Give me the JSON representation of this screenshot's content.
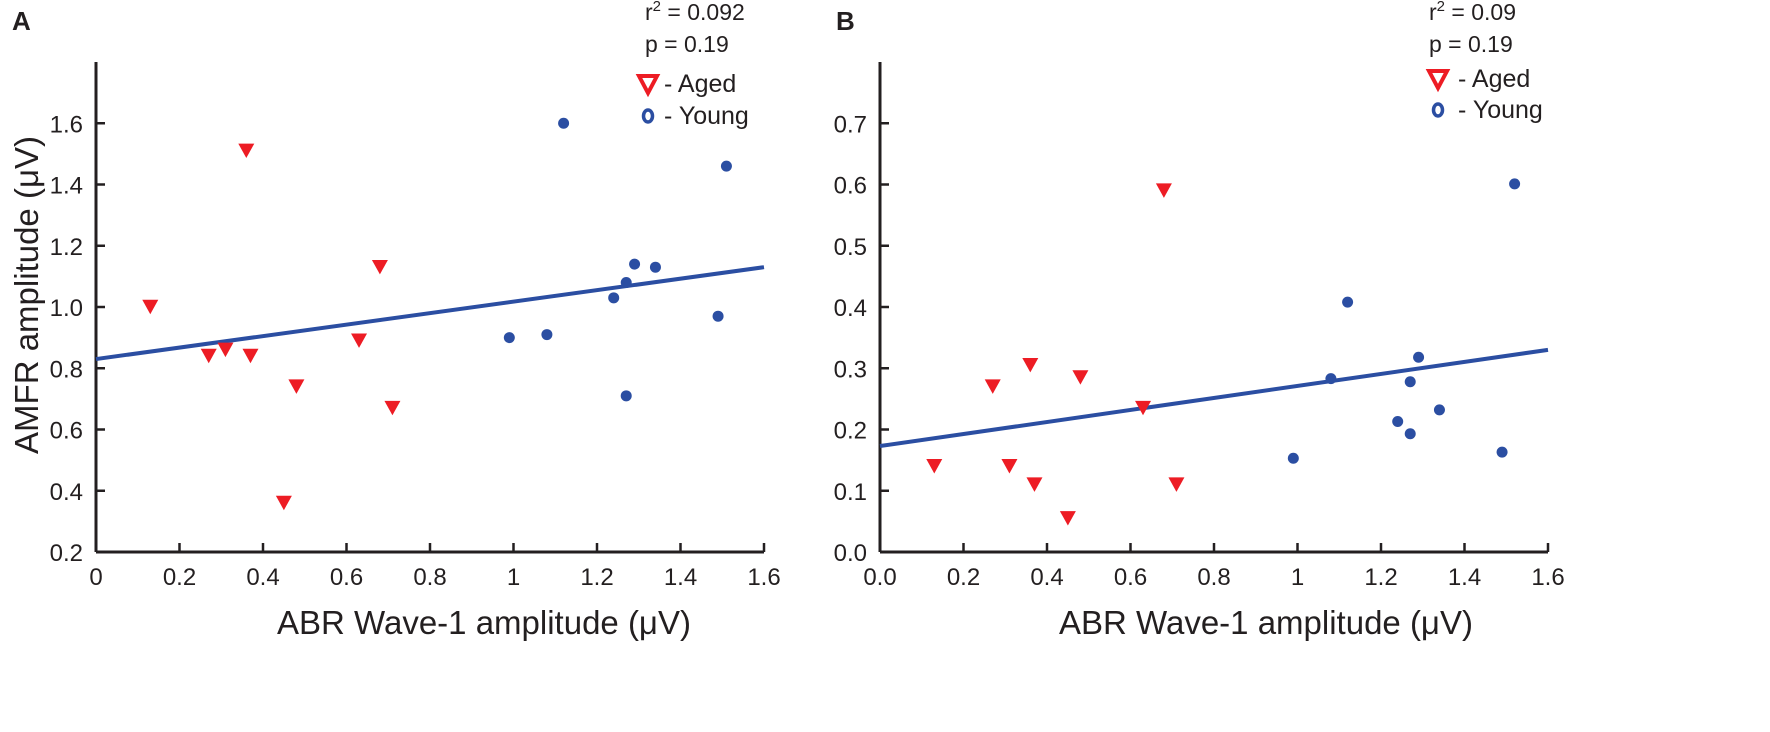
{
  "colors": {
    "aged": "#ed1c24",
    "young": "#2b4ea2",
    "regression": "#2b4ea2",
    "axis": "#231f20"
  },
  "chart_data": [
    {
      "type": "scatter",
      "panel_label": "A",
      "xlabel": "ABR Wave-1 amplitude (μV)",
      "ylabel": "AMFR amplitude (μV)",
      "xlim": [
        0,
        1.6
      ],
      "ylim": [
        0.2,
        1.8
      ],
      "xticks": [
        0,
        0.2,
        0.4,
        0.6,
        0.8,
        1.0,
        1.2,
        1.4,
        1.6
      ],
      "xtick_labels": [
        "0",
        "0.2",
        "0.4",
        "0.6",
        "0.8",
        "1",
        "1.2",
        "1.4",
        "1.6"
      ],
      "yticks": [
        0.2,
        0.4,
        0.6,
        0.8,
        1.0,
        1.2,
        1.4,
        1.6
      ],
      "ytick_labels": [
        "0.2",
        "0.4",
        "0.6",
        "0.8",
        "1.0",
        "1.2",
        "1.4",
        "1.6"
      ],
      "stats": {
        "r2_prefix": "r",
        "r2_exp": "2",
        "r2_value": " = 0.092",
        "p": "p = 0.19"
      },
      "legend": {
        "aged": "- Aged",
        "young": "- Young",
        "position": "top-right"
      },
      "regression": {
        "x": [
          0,
          1.6
        ],
        "y": [
          0.83,
          1.13
        ]
      },
      "series": [
        {
          "name": "Aged",
          "marker": "triangle-down",
          "points": [
            {
              "x": 0.13,
              "y": 1.0
            },
            {
              "x": 0.27,
              "y": 0.84
            },
            {
              "x": 0.31,
              "y": 0.86
            },
            {
              "x": 0.36,
              "y": 1.51
            },
            {
              "x": 0.37,
              "y": 0.84
            },
            {
              "x": 0.45,
              "y": 0.36
            },
            {
              "x": 0.48,
              "y": 0.74
            },
            {
              "x": 0.63,
              "y": 0.89
            },
            {
              "x": 0.68,
              "y": 1.13
            },
            {
              "x": 0.71,
              "y": 0.67
            }
          ]
        },
        {
          "name": "Young",
          "marker": "circle",
          "points": [
            {
              "x": 0.99,
              "y": 0.9
            },
            {
              "x": 1.08,
              "y": 0.91
            },
            {
              "x": 1.12,
              "y": 1.6
            },
            {
              "x": 1.24,
              "y": 1.03
            },
            {
              "x": 1.27,
              "y": 1.08
            },
            {
              "x": 1.27,
              "y": 0.71
            },
            {
              "x": 1.29,
              "y": 1.14
            },
            {
              "x": 1.34,
              "y": 1.13
            },
            {
              "x": 1.49,
              "y": 0.97
            },
            {
              "x": 1.51,
              "y": 1.46
            }
          ]
        }
      ]
    },
    {
      "type": "scatter",
      "panel_label": "B",
      "xlabel": "ABR Wave-1 amplitude (μV)",
      "ylabel": "",
      "xlim": [
        0,
        1.6
      ],
      "ylim": [
        0,
        0.8
      ],
      "xticks": [
        0,
        0.2,
        0.4,
        0.6,
        0.8,
        1.0,
        1.2,
        1.4,
        1.6
      ],
      "xtick_labels": [
        "0.0",
        "0.2",
        "0.4",
        "0.6",
        "0.8",
        "1",
        "1.2",
        "1.4",
        "1.6"
      ],
      "yticks": [
        0,
        0.1,
        0.2,
        0.3,
        0.4,
        0.5,
        0.6,
        0.7
      ],
      "ytick_labels": [
        "0.0",
        "0.1",
        "0.2",
        "0.3",
        "0.4",
        "0.5",
        "0.6",
        "0.7"
      ],
      "stats": {
        "r2_prefix": "r",
        "r2_exp": "2",
        "r2_value": " = 0.09",
        "p": "p = 0.19"
      },
      "legend": {
        "aged": "- Aged",
        "young": "- Young",
        "position": "top-right"
      },
      "regression": {
        "x": [
          0,
          1.6
        ],
        "y": [
          0.173,
          0.33
        ]
      },
      "series": [
        {
          "name": "Aged",
          "marker": "triangle-down",
          "points": [
            {
              "x": 0.13,
              "y": 0.14
            },
            {
              "x": 0.27,
              "y": 0.27
            },
            {
              "x": 0.31,
              "y": 0.14
            },
            {
              "x": 0.36,
              "y": 0.305
            },
            {
              "x": 0.37,
              "y": 0.11
            },
            {
              "x": 0.45,
              "y": 0.055
            },
            {
              "x": 0.48,
              "y": 0.285
            },
            {
              "x": 0.63,
              "y": 0.235
            },
            {
              "x": 0.68,
              "y": 0.59
            },
            {
              "x": 0.71,
              "y": 0.11
            }
          ]
        },
        {
          "name": "Young",
          "marker": "circle",
          "points": [
            {
              "x": 0.99,
              "y": 0.153
            },
            {
              "x": 1.08,
              "y": 0.283
            },
            {
              "x": 1.12,
              "y": 0.408
            },
            {
              "x": 1.24,
              "y": 0.213
            },
            {
              "x": 1.27,
              "y": 0.278
            },
            {
              "x": 1.27,
              "y": 0.193
            },
            {
              "x": 1.29,
              "y": 0.318
            },
            {
              "x": 1.34,
              "y": 0.232
            },
            {
              "x": 1.49,
              "y": 0.163
            },
            {
              "x": 1.52,
              "y": 0.601
            }
          ]
        }
      ]
    }
  ]
}
